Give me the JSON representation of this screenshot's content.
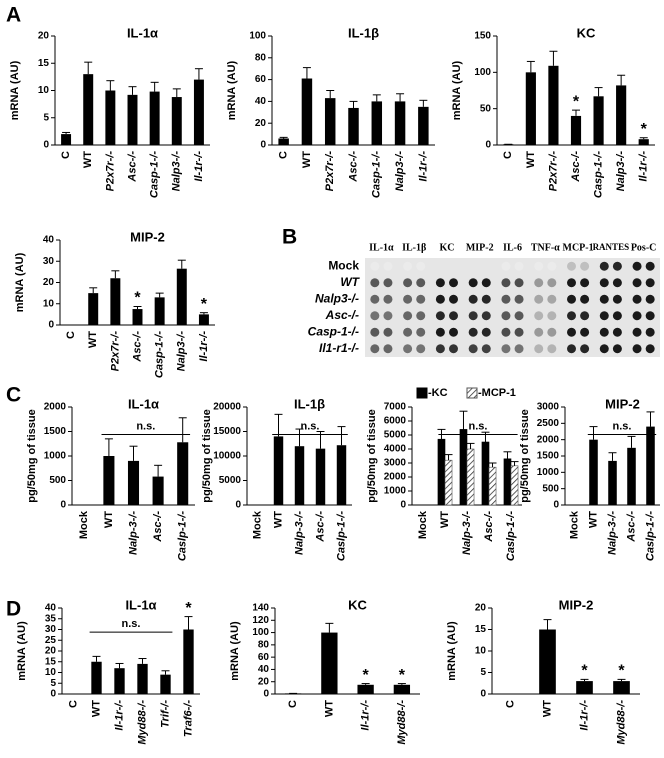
{
  "panel_labels": [
    "A",
    "B",
    "C",
    "D"
  ],
  "blot": {
    "columns": [
      "IL-1α",
      "IL-1β",
      "KC",
      "MIP-2",
      "IL-6",
      "TNF-α",
      "MCP-1",
      "RANTES",
      "Pos-C"
    ],
    "rows": [
      "Mock",
      "WT",
      "Nalp3-/-",
      "Asc-/-",
      "Casp-1-/-",
      "Il1-r1-/-"
    ]
  },
  "chart_data": [
    {
      "type": "bar",
      "title": "IL-1α",
      "y_label": "mRNA (AU)",
      "categories": [
        "C",
        "WT",
        "P2x7r-/-",
        "Asc-/-",
        "Casp-1-/-",
        "Nalp3-/-",
        "Il-1r-/-"
      ],
      "values": [
        2,
        13,
        10,
        9.2,
        9.8,
        8.8,
        12
      ],
      "errors": [
        0.3,
        2.2,
        1.8,
        1.5,
        1.7,
        1.5,
        2
      ],
      "color": "#000000",
      "ylim": [
        0,
        20
      ],
      "yticks": [
        0,
        5,
        10,
        15,
        20
      ]
    },
    {
      "type": "bar",
      "title": "IL-1β",
      "y_label": "mRNA (AU)",
      "categories": [
        "C",
        "WT",
        "P2x7r-/-",
        "Asc-/-",
        "Casp-1-/-",
        "Nalp3-/-",
        "Il-1r-/-"
      ],
      "values": [
        6,
        61,
        43,
        34,
        40,
        40,
        35
      ],
      "errors": [
        1,
        10,
        7,
        6,
        6,
        7,
        6
      ],
      "color": "#000000",
      "ylim": [
        0,
        100
      ],
      "yticks": [
        0,
        20,
        40,
        60,
        80,
        100
      ]
    },
    {
      "type": "bar",
      "title": "KC",
      "y_label": "mRNA (AU)",
      "categories": [
        "C",
        "WT",
        "P2x7r-/-",
        "Asc-/-",
        "Casp-1-/-",
        "Nalp3-/-",
        "Il-1r-/-"
      ],
      "values": [
        1,
        100,
        109,
        40,
        67,
        82,
        8
      ],
      "errors": [
        0,
        15,
        20,
        8,
        12,
        14,
        2
      ],
      "significance": [
        null,
        null,
        null,
        "*",
        null,
        null,
        "*"
      ],
      "color": "#000000",
      "ylim": [
        0,
        150
      ],
      "yticks": [
        0,
        50,
        100,
        150
      ]
    },
    {
      "type": "bar",
      "title": "MIP-2",
      "y_label": "mRNA (AU)",
      "categories": [
        "C",
        "WT",
        "P2x7r-/-",
        "Asc-/-",
        "Casp-1-/-",
        "Nalp3-/-",
        "Il-1r-/-"
      ],
      "values": [
        0,
        15,
        22,
        7.5,
        13,
        26.5,
        5
      ],
      "errors": [
        0,
        2.5,
        3.5,
        1.2,
        2,
        4,
        0.8
      ],
      "significance": [
        null,
        null,
        null,
        "*",
        null,
        null,
        "*"
      ],
      "color": "#000000",
      "ylim": [
        0,
        40
      ],
      "yticks": [
        0,
        10,
        20,
        30,
        40
      ]
    },
    {
      "type": "bar",
      "title": "IL-1α",
      "y_label": "pg/50mg of tissue",
      "categories": [
        "Mock",
        "WT",
        "Nalp-3-/-",
        "Asc-/-",
        "Caslp-1-/-"
      ],
      "values": [
        0,
        1000,
        900,
        580,
        1280
      ],
      "errors": [
        0,
        350,
        300,
        230,
        500
      ],
      "ns": {
        "label": "n.s.",
        "from": "WT",
        "to": "Caslp-1-/-"
      },
      "color": "#000000",
      "ylim": [
        0,
        2000
      ],
      "yticks": [
        0,
        500,
        1000,
        1500,
        2000
      ]
    },
    {
      "type": "bar",
      "title": "IL-1β",
      "y_label": "pg/50mg of tissue",
      "categories": [
        "Mock",
        "WT",
        "Nalp-3-/-",
        "Asc-/-",
        "Caslp-1-/-"
      ],
      "values": [
        0,
        14000,
        12000,
        11500,
        12200
      ],
      "errors": [
        0,
        4500,
        3500,
        3500,
        3800
      ],
      "ns": {
        "label": "n.s.",
        "from": "WT",
        "to": "Caslp-1-/-"
      },
      "color": "#000000",
      "ylim": [
        0,
        20000
      ],
      "yticks": [
        0,
        5000,
        10000,
        15000,
        20000
      ]
    },
    {
      "type": "grouped_bar",
      "y_label": "pg/50mg of tissue",
      "categories": [
        "Mock",
        "WT",
        "Nalp-3-/-",
        "Asc-/-",
        "Caslp-1-/-"
      ],
      "series": [
        {
          "name": "-KC",
          "color": "#000000",
          "values": [
            0,
            4700,
            5400,
            4500,
            3300
          ],
          "errors": [
            0,
            700,
            1300,
            700,
            500
          ]
        },
        {
          "name": "-MCP-1",
          "color": "#555555",
          "hatch": true,
          "values": [
            0,
            3200,
            4000,
            2700,
            2800
          ],
          "errors": [
            0,
            400,
            400,
            300,
            300
          ]
        }
      ],
      "ns": {
        "label": "n.s.",
        "from": "WT",
        "to": "Caslp-1-/-"
      },
      "ylim": [
        0,
        7000
      ],
      "yticks": [
        0,
        1000,
        2000,
        3000,
        4000,
        5000,
        6000,
        7000
      ]
    },
    {
      "type": "bar",
      "title": "MIP-2",
      "y_label": "pg/50mg of tissue",
      "categories": [
        "Mock",
        "WT",
        "Nalp-3-/-",
        "Asc-/-",
        "Caslp-1-/-"
      ],
      "values": [
        0,
        2000,
        1350,
        1750,
        2400
      ],
      "errors": [
        0,
        400,
        250,
        350,
        450
      ],
      "ns": {
        "label": "n.s.",
        "from": "WT",
        "to": "Caslp-1-/-"
      },
      "color": "#000000",
      "ylim": [
        0,
        3000
      ],
      "yticks": [
        0,
        500,
        1000,
        1500,
        2000,
        2500,
        3000
      ]
    },
    {
      "type": "bar",
      "title": "IL-1α",
      "y_label": "mRNA (AU)",
      "categories": [
        "C",
        "WT",
        "Il-1r-/-",
        "Myd88-/-",
        "Trif-/-",
        "Traf6-/-"
      ],
      "values": [
        0,
        15,
        12,
        14,
        9,
        30
      ],
      "errors": [
        0,
        2.5,
        2.2,
        2.5,
        1.8,
        6
      ],
      "significance": [
        null,
        null,
        null,
        null,
        null,
        "*"
      ],
      "ns": {
        "label": "n.s.",
        "from": "WT",
        "to": "Trif-/-"
      },
      "color": "#000000",
      "ylim": [
        0,
        40
      ],
      "yticks": [
        0,
        5,
        10,
        15,
        20,
        25,
        30,
        35,
        40
      ]
    },
    {
      "type": "bar",
      "title": "KC",
      "y_label": "mRNA (AU)",
      "categories": [
        "C",
        "WT",
        "Il-1r-/-",
        "Myd88-/-"
      ],
      "values": [
        1,
        100,
        15,
        15
      ],
      "errors": [
        0,
        15,
        2,
        2
      ],
      "significance": [
        null,
        null,
        "*",
        "*"
      ],
      "color": "#000000",
      "ylim": [
        0,
        140
      ],
      "yticks": [
        0,
        20,
        40,
        60,
        80,
        100,
        120,
        140
      ]
    },
    {
      "type": "bar",
      "title": "MIP-2",
      "y_label": "mRNA (AU)",
      "categories": [
        "C",
        "WT",
        "Il-1r-/-",
        "Myd88-/-"
      ],
      "values": [
        0,
        15,
        3,
        3
      ],
      "errors": [
        0,
        2.3,
        0.4,
        0.4
      ],
      "significance": [
        null,
        null,
        "*",
        "*"
      ],
      "color": "#000000",
      "ylim": [
        0,
        20
      ],
      "yticks": [
        0,
        5,
        10,
        15,
        20
      ]
    }
  ]
}
